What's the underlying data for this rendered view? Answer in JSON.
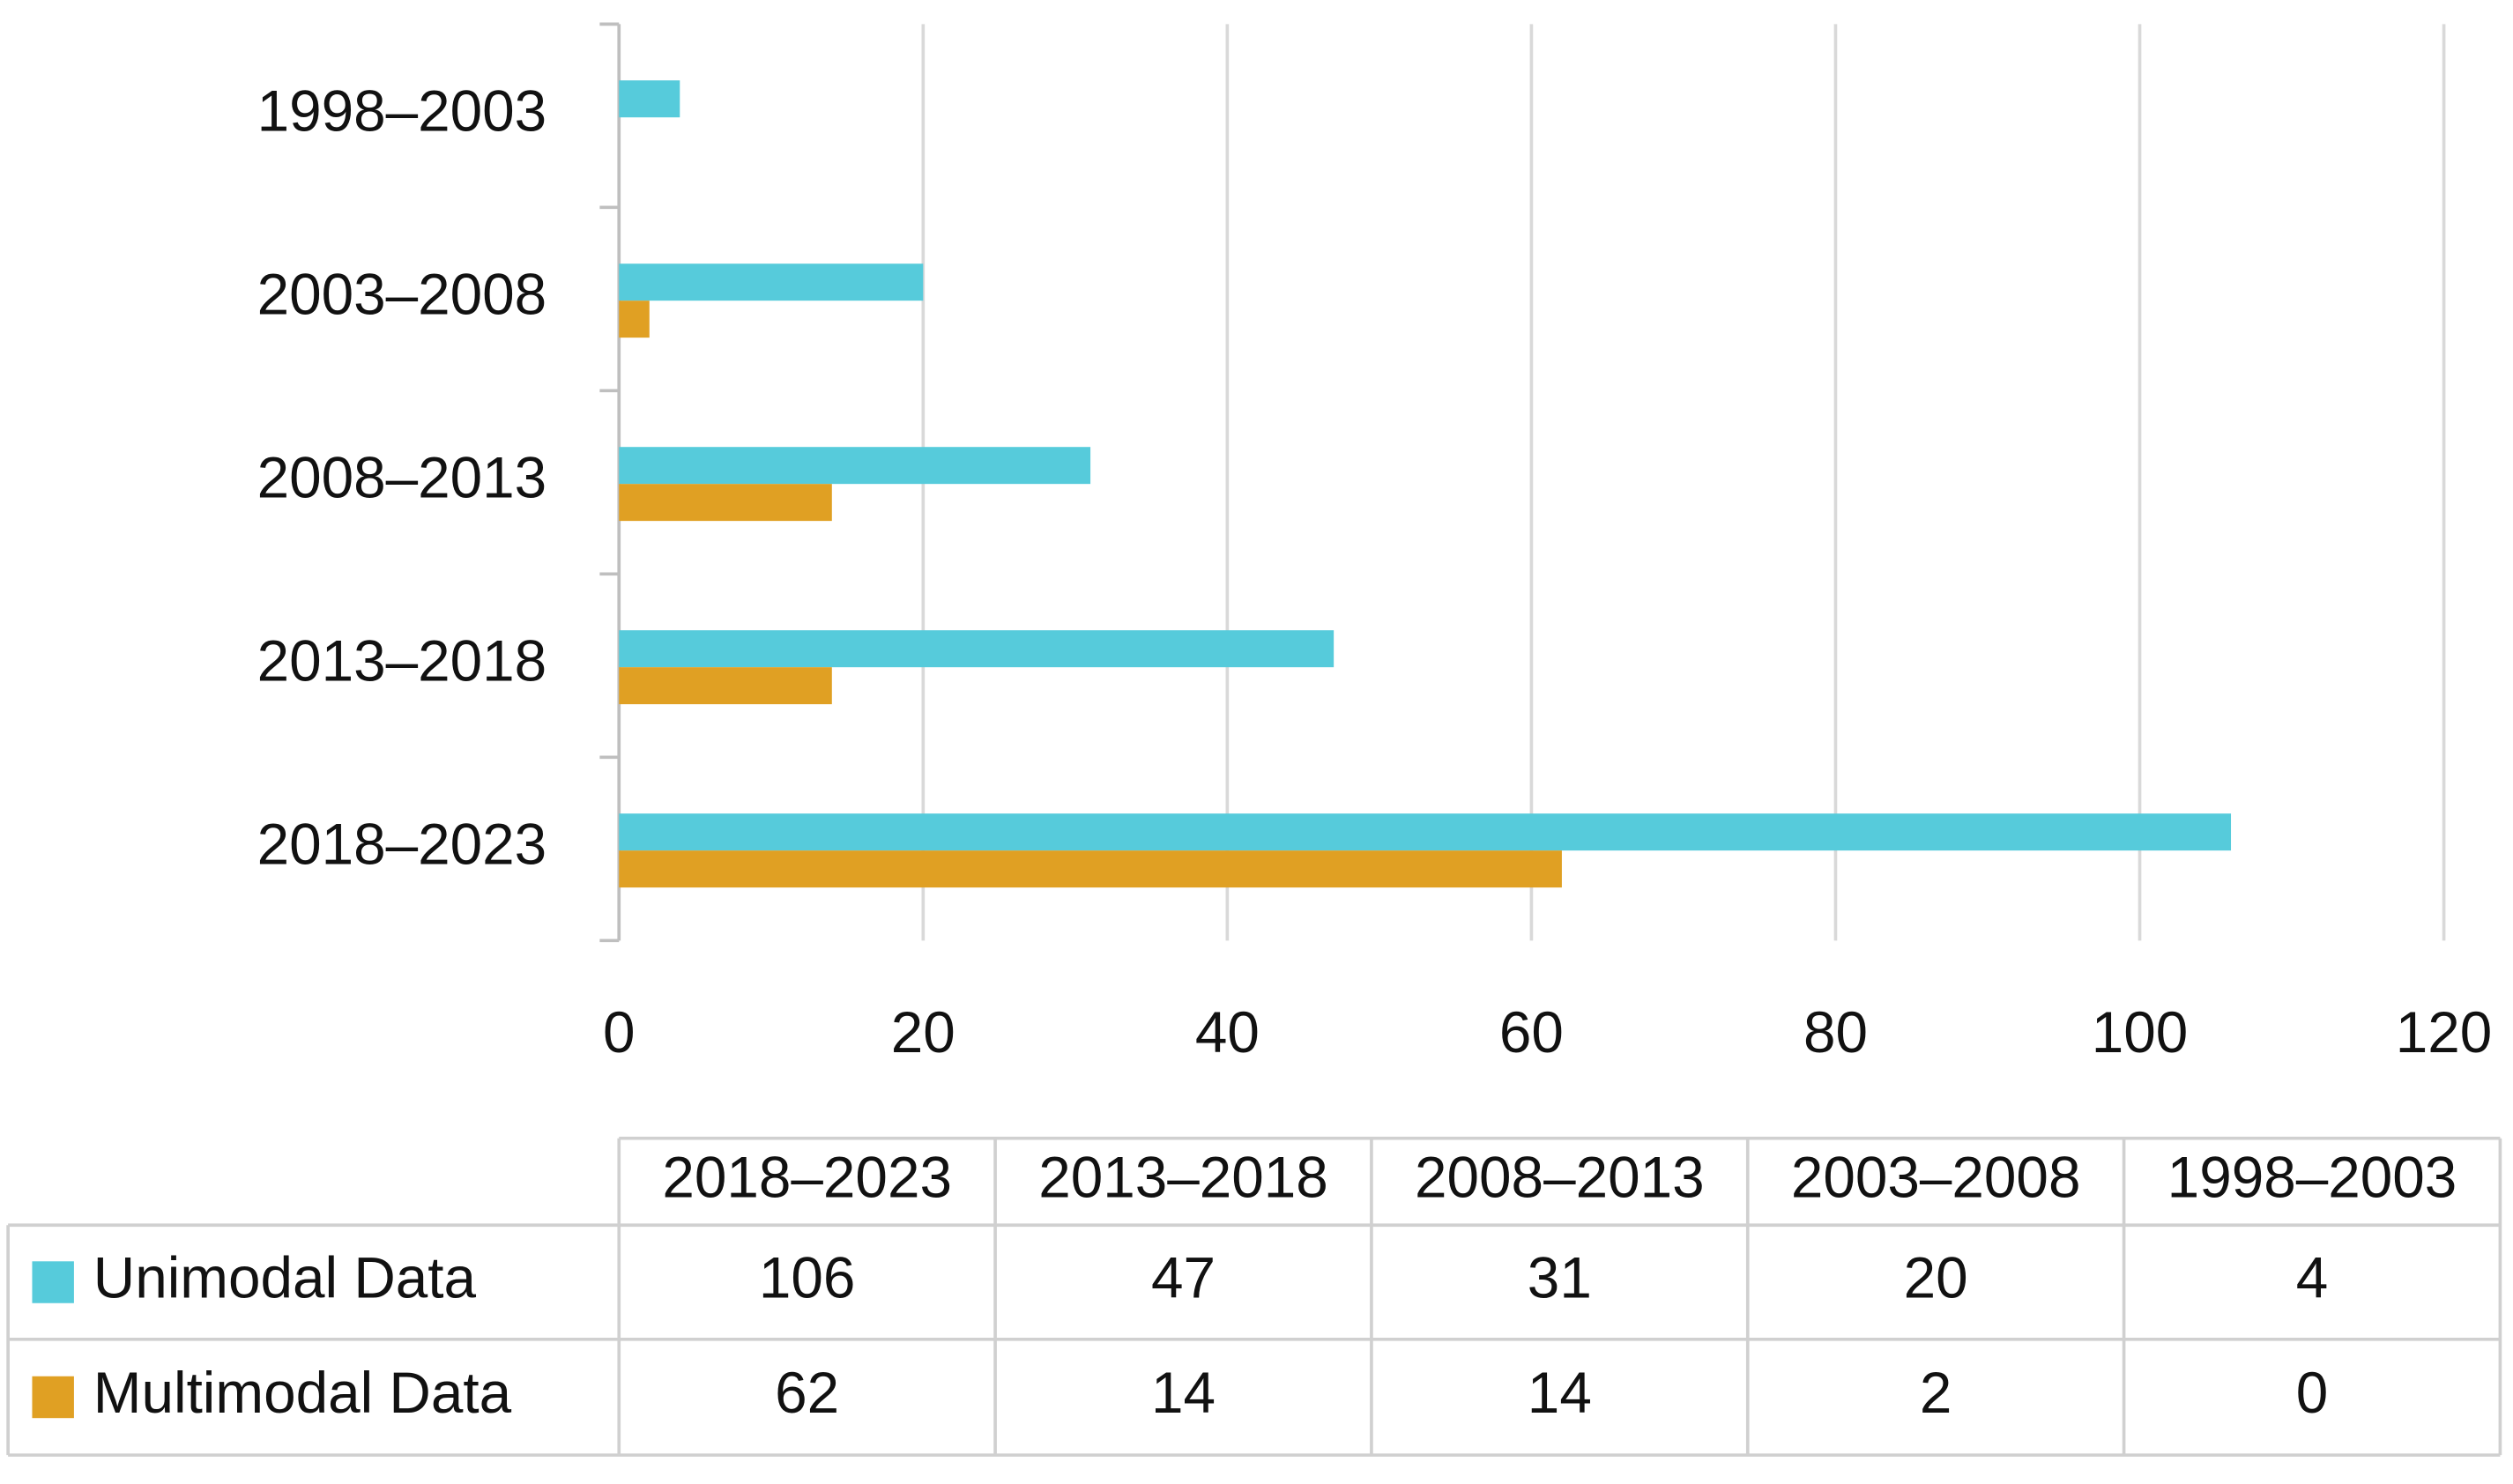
{
  "chart_data": {
    "type": "bar",
    "orientation": "horizontal",
    "categories": [
      "2018–2023",
      "2013–2018",
      "2008–2013",
      "2003–2008",
      "1998–2003"
    ],
    "series": [
      {
        "name": "Unimodal Data",
        "color": "#56cbdb",
        "values": [
          106,
          47,
          31,
          20,
          4
        ]
      },
      {
        "name": "Multimodal Data",
        "color": "#e0a023",
        "values": [
          62,
          14,
          14,
          2,
          0
        ]
      }
    ],
    "xlim": [
      0,
      120
    ],
    "xticks": [
      0,
      20,
      40,
      60,
      80,
      100,
      120
    ],
    "grid": true,
    "data_table": true
  }
}
